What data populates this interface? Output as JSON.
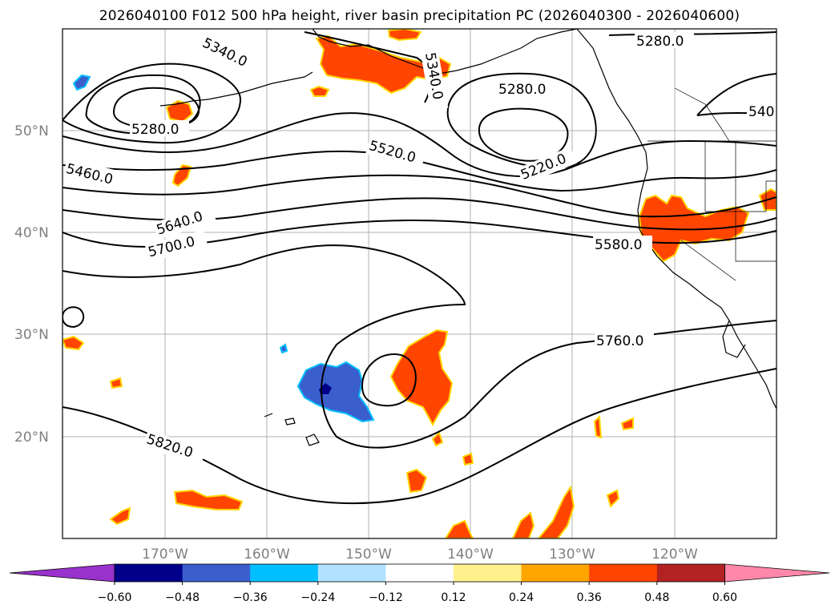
{
  "title": "2026040100 F012 500 hPa height, river basin precipitation PC (2026040300 - 2026040600)",
  "map": {
    "lat_labels": [
      "50°N",
      "40°N",
      "30°N",
      "20°N"
    ],
    "lon_labels": [
      "170°W",
      "160°W",
      "150°W",
      "140°W",
      "130°W",
      "120°W"
    ],
    "contour_labels": [
      "5340.0",
      "5280.0",
      "5460.0",
      "5340.0",
      "5280.0",
      "5520.0",
      "5220.0",
      "5280.0",
      "540",
      "5640.0",
      "5700.0",
      "5580.0",
      "5760.0",
      "5820.0"
    ],
    "colors": {
      "positive": "#ff4500",
      "positive_edge": "#ffd700",
      "negative": "#3a5fcd",
      "negative_dark": "#00008b",
      "negative_light": "#00bfff"
    }
  },
  "colorbar": {
    "tick_labels": [
      "−0.60",
      "−0.48",
      "−0.36",
      "−0.24",
      "−0.12",
      "0.12",
      "0.24",
      "0.36",
      "0.48",
      "0.60"
    ],
    "colors": [
      "#9932cc",
      "#00008b",
      "#3a5fcd",
      "#00bfff",
      "#b0e2ff",
      "#ffffff",
      "#fff08b",
      "#ffa500",
      "#ff4500",
      "#b22222",
      "#ff88aa"
    ]
  }
}
